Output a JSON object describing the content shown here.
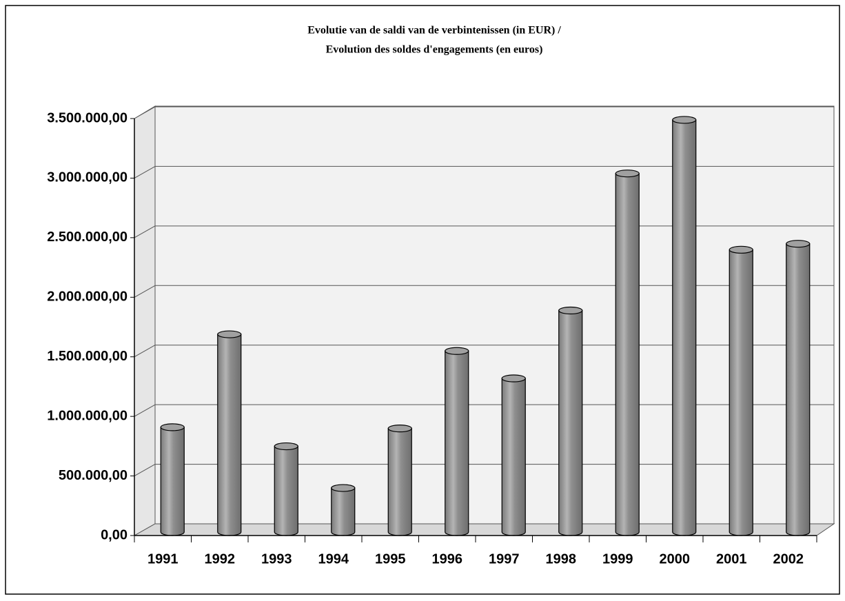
{
  "chart_data": {
    "type": "bar3d",
    "title": [
      "Evolutie van de saldi van de verbintenissen (in EUR) /",
      "Evolution des soldes d'engagements (en euros)"
    ],
    "categories": [
      "1991",
      "1992",
      "1993",
      "1994",
      "1995",
      "1996",
      "1997",
      "1998",
      "1999",
      "2000",
      "2001",
      "2002"
    ],
    "values": [
      880000,
      1660000,
      720000,
      370000,
      870000,
      1520000,
      1290000,
      1860000,
      3010000,
      3460000,
      2370000,
      2420000
    ],
    "color": "#a0a0a0",
    "ylim": [
      0,
      3500000
    ],
    "yticks": [
      {
        "value": 0,
        "label": "0,00"
      },
      {
        "value": 500000,
        "label": "500.000,00"
      },
      {
        "value": 1000000,
        "label": "1.000.000,00"
      },
      {
        "value": 1500000,
        "label": "1.500.000,00"
      },
      {
        "value": 2000000,
        "label": "2.000.000,00"
      },
      {
        "value": 2500000,
        "label": "2.500.000,00"
      },
      {
        "value": 3000000,
        "label": "3.000.000,00"
      },
      {
        "value": 3500000,
        "label": "3.500.000,00"
      }
    ],
    "grid": true
  }
}
